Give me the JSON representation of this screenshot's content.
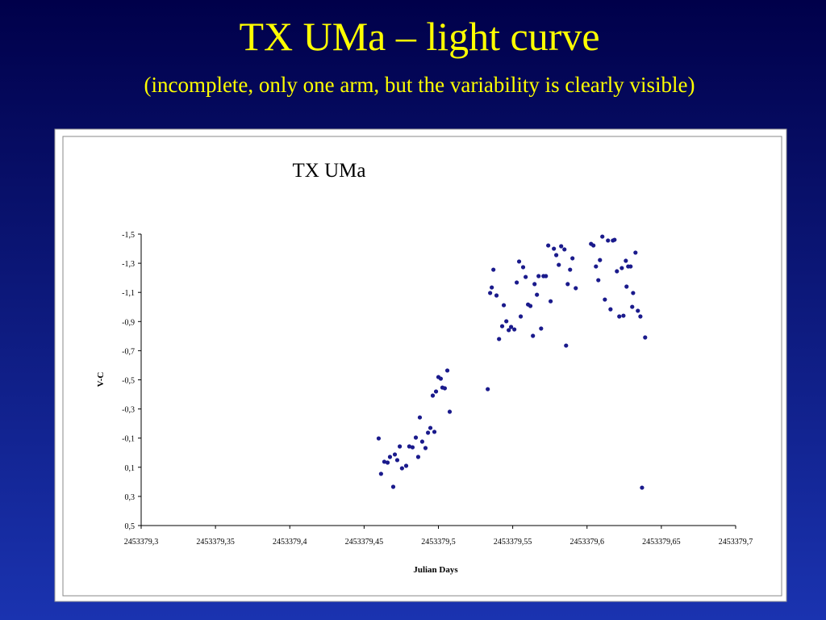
{
  "slide": {
    "title": "TX UMa – light curve",
    "subtitle": "(incomplete, only one arm, but the variability is clearly visible)"
  },
  "chart_data": {
    "type": "scatter",
    "title": "TX UMa",
    "x_label": "Julian Days",
    "y_label": "V-C",
    "xlim": [
      2453379.3,
      2453379.7
    ],
    "xticks": [
      {
        "value": 2453379.3,
        "label": "2453379,3"
      },
      {
        "value": 2453379.35,
        "label": "2453379,35"
      },
      {
        "value": 2453379.4,
        "label": "2453379,4"
      },
      {
        "value": 2453379.45,
        "label": "2453379,45"
      },
      {
        "value": 2453379.5,
        "label": "2453379,5"
      },
      {
        "value": 2453379.55,
        "label": "2453379,55"
      },
      {
        "value": 2453379.6,
        "label": "2453379,6"
      },
      {
        "value": 2453379.65,
        "label": "2453379,65"
      },
      {
        "value": 2453379.7,
        "label": "2453379,7"
      }
    ],
    "ylim": [
      0.5,
      -1.5
    ],
    "yticks": [
      {
        "value": -1.5,
        "label": "-1,5"
      },
      {
        "value": -1.3,
        "label": "-1,3"
      },
      {
        "value": -1.1,
        "label": "-1,1"
      },
      {
        "value": -0.9,
        "label": "-0,9"
      },
      {
        "value": -0.7,
        "label": "-0,7"
      },
      {
        "value": -0.5,
        "label": "-0,5"
      },
      {
        "value": -0.3,
        "label": "-0,3"
      },
      {
        "value": -0.1,
        "label": "-0,1"
      },
      {
        "value": 0.1,
        "label": "0,1"
      },
      {
        "value": 0.3,
        "label": "0,3"
      },
      {
        "value": 0.5,
        "label": "0,5"
      }
    ],
    "color": "#1a1a8c",
    "x": [
      2453379.4598,
      2453379.4614,
      2453379.4636,
      2453379.4658,
      2453379.4674,
      2453379.4696,
      2453379.4707,
      2453379.4723,
      2453379.474,
      2453379.4755,
      2453379.4783,
      2453379.4804,
      2453379.4826,
      2453379.4848,
      2453379.4864,
      2453379.4875,
      2453379.4891,
      2453379.4913,
      2453379.493,
      2453379.4946,
      2453379.4962,
      2453379.4973,
      2453379.4984,
      2453379.5,
      2453379.5016,
      2453379.5027,
      2453379.5043,
      2453379.506,
      2453379.5076,
      2453379.5332,
      2453379.5348,
      2453379.5359,
      2453379.537,
      2453379.5391,
      2453379.5408,
      2453379.5429,
      2453379.544,
      2453379.5457,
      2453379.5473,
      2453379.5489,
      2453379.5511,
      2453379.5527,
      2453379.5543,
      2453379.5554,
      2453379.557,
      2453379.5587,
      2453379.5603,
      2453379.5619,
      2453379.5636,
      2453379.5647,
      2453379.5663,
      2453379.5674,
      2453379.5691,
      2453379.5707,
      2453379.5723,
      2453379.5739,
      2453379.5755,
      2453379.5777,
      2453379.5793,
      2453379.581,
      2453379.5826,
      2453379.5848,
      2453379.5859,
      2453379.587,
      2453379.5886,
      2453379.5902,
      2453379.5924,
      2453379.6027,
      2453379.6043,
      2453379.606,
      2453379.6076,
      2453379.6087,
      2453379.6103,
      2453379.612,
      2453379.6141,
      2453379.6158,
      2453379.6174,
      2453379.6185,
      2453379.6201,
      2453379.6217,
      2453379.6234,
      2453379.6245,
      2453379.6261,
      2453379.6277,
      2453379.6266,
      2453379.6293,
      2453379.6304,
      2453379.631,
      2453379.6326,
      2453379.6342,
      2453379.6359,
      2453379.637,
      2453379.6391
    ],
    "values": [
      -0.098,
      0.145,
      0.062,
      0.068,
      0.029,
      0.234,
      0.012,
      0.051,
      -0.043,
      0.107,
      0.09,
      -0.043,
      -0.037,
      -0.104,
      0.029,
      -0.242,
      -0.076,
      -0.032,
      -0.137,
      -0.17,
      -0.392,
      -0.143,
      -0.42,
      -0.519,
      -0.508,
      -0.447,
      -0.442,
      -0.564,
      -0.281,
      -0.436,
      -1.096,
      -1.134,
      -1.256,
      -1.079,
      -0.78,
      -0.868,
      -1.012,
      -0.902,
      -0.841,
      -0.863,
      -0.846,
      -1.168,
      -1.312,
      -0.935,
      -1.273,
      -1.206,
      -1.017,
      -1.007,
      -0.802,
      -1.157,
      -1.084,
      -1.212,
      -0.852,
      -1.212,
      -1.212,
      -1.422,
      -1.039,
      -1.4,
      -1.356,
      -1.289,
      -1.417,
      -1.395,
      -0.735,
      -1.157,
      -1.256,
      -1.334,
      -1.129,
      -1.433,
      -1.422,
      -1.278,
      -1.184,
      -1.322,
      -1.483,
      -1.051,
      -1.456,
      -0.984,
      -1.456,
      -1.461,
      -1.245,
      -0.935,
      -1.267,
      -0.94,
      -1.317,
      -1.278,
      -1.14,
      -1.278,
      -1.001,
      -1.096,
      -1.373,
      -0.974,
      -0.935,
      0.24,
      -0.791
    ]
  }
}
